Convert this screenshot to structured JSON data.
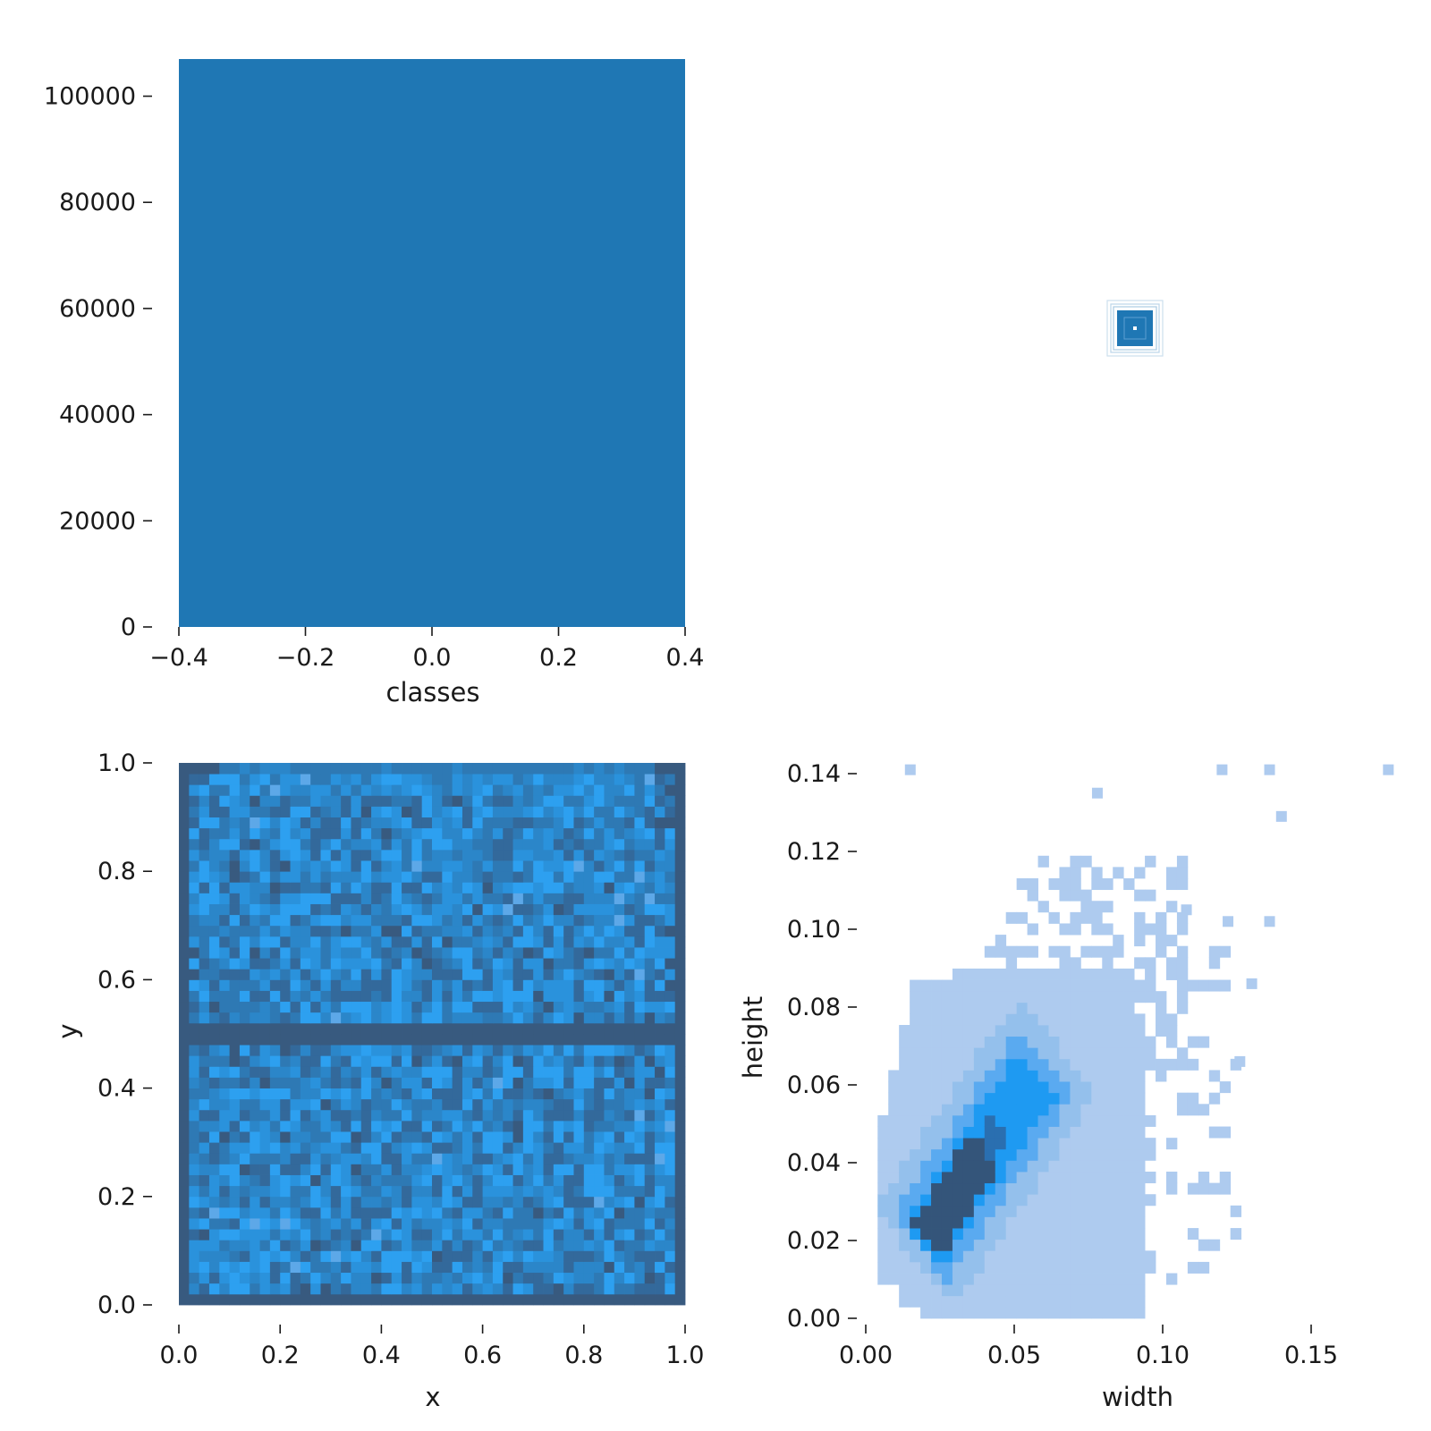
{
  "chart_data": [
    {
      "type": "bar",
      "panel": "classes-histogram",
      "categories": [
        "0"
      ],
      "values": [
        107000
      ],
      "bar_extent": [
        -0.4,
        0.4
      ],
      "xlabel": "classes",
      "ylabel": "",
      "xlim": [
        -0.4,
        0.4
      ],
      "ylim": [
        0,
        107000
      ],
      "xticks": [
        -0.4,
        -0.2,
        0.0,
        0.2,
        0.4
      ],
      "xtick_labels": [
        "−0.4",
        "−0.2",
        "0.0",
        "0.2",
        "0.4"
      ],
      "yticks": [
        0,
        20000,
        40000,
        60000,
        80000,
        100000
      ],
      "ytick_labels": [
        "0",
        "20000",
        "40000",
        "60000",
        "80000",
        "100000"
      ],
      "color": "#1f77b4",
      "grid": false
    },
    {
      "type": "heatmap",
      "panel": "xy-density",
      "xlabel": "x",
      "ylabel": "y",
      "xlim": [
        0,
        1
      ],
      "ylim": [
        0,
        1
      ],
      "bins": [
        50,
        50
      ],
      "density_pattern": "roughly uniform over the unit square, darker along the border and along a horizontal band near y = 0.5",
      "dense_band_y": 0.5,
      "xticks": [
        0.0,
        0.2,
        0.4,
        0.6,
        0.8,
        1.0
      ],
      "xtick_labels": [
        "0.0",
        "0.2",
        "0.4",
        "0.6",
        "0.8",
        "1.0"
      ],
      "yticks": [
        0.0,
        0.2,
        0.4,
        0.6,
        0.8,
        1.0
      ],
      "ytick_labels": [
        "0.0",
        "0.2",
        "0.4",
        "0.6",
        "0.8",
        "1.0"
      ],
      "colors": {
        "light": "#2d9fef",
        "mid": "#2a7cc0",
        "dark": "#3a4f6a"
      },
      "grid": false
    },
    {
      "type": "heatmap",
      "panel": "width-height-density",
      "xlabel": "width",
      "ylabel": "height",
      "xlim": [
        -0.003,
        0.178
      ],
      "ylim": [
        0,
        0.145
      ],
      "cell_size": [
        0.0036,
        0.0029
      ],
      "density_pattern": "dense diagonal ridge from (0.02, 0.02) to (0.057, 0.062), broad light cloud for width 0.004-0.1 and height 0-0.09, scattered outliers up to width 0.176, height 0.144",
      "ridge": {
        "from": [
          0.02,
          0.02
        ],
        "to": [
          0.057,
          0.062
        ]
      },
      "outliers": [
        [
          0.015,
          0.141
        ],
        [
          0.12,
          0.141
        ],
        [
          0.136,
          0.141
        ],
        [
          0.176,
          0.141
        ],
        [
          0.078,
          0.135
        ],
        [
          0.14,
          0.129
        ],
        [
          0.108,
          0.105
        ],
        [
          0.122,
          0.102
        ],
        [
          0.136,
          0.102
        ],
        [
          0.13,
          0.086
        ],
        [
          0.126,
          0.066
        ]
      ],
      "xticks": [
        0.0,
        0.05,
        0.1,
        0.15
      ],
      "xtick_labels": [
        "0.00",
        "0.05",
        "0.10",
        "0.15"
      ],
      "yticks": [
        0.0,
        0.02,
        0.04,
        0.06,
        0.08,
        0.1,
        0.12,
        0.14
      ],
      "ytick_labels": [
        "0.00",
        "0.02",
        "0.04",
        "0.06",
        "0.08",
        "0.10",
        "0.12",
        "0.14"
      ],
      "colors": {
        "light": "#aecbef",
        "mid": "#5aaaf0",
        "strong": "#1e9af2",
        "dark": "#34557a"
      },
      "grid": false
    },
    {
      "type": "heatmap",
      "panel": "top-right-marker",
      "description_visual": "tiny nested-square contour marker",
      "colors": {
        "fill": "#1f77b4",
        "outline": "#8fb9da"
      }
    }
  ]
}
